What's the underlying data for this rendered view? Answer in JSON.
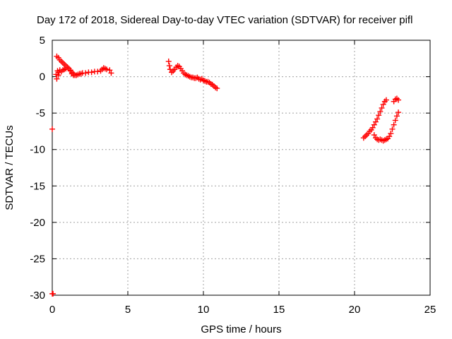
{
  "chart_data": {
    "type": "scatter",
    "title": "Day 172 of 2018, Sidereal Day-to-day VTEC variation (SDTVAR) for receiver pifl",
    "xlabel": "GPS time / hours",
    "ylabel": "SDTVAR / TECUs",
    "xlim": [
      0,
      25
    ],
    "ylim": [
      -30,
      5
    ],
    "xticks": [
      0,
      5,
      10,
      15,
      20,
      25
    ],
    "yticks": [
      5,
      0,
      -5,
      -10,
      -15,
      -20,
      -25,
      -30
    ],
    "grid": true,
    "marker": "+",
    "color": "#ff0000",
    "series": [
      {
        "points": [
          [
            0.0,
            -7.2
          ],
          [
            0.0,
            -29.8
          ],
          [
            0.05,
            -29.8
          ],
          [
            0.25,
            0.3
          ],
          [
            0.3,
            -0.3
          ],
          [
            0.35,
            0.8
          ],
          [
            0.4,
            0.2
          ],
          [
            0.45,
            0.6
          ],
          [
            0.5,
            0.9
          ],
          [
            0.3,
            2.8
          ],
          [
            0.4,
            2.6
          ],
          [
            0.5,
            2.3
          ],
          [
            0.6,
            2.1
          ],
          [
            0.7,
            1.9
          ],
          [
            0.8,
            1.7
          ],
          [
            0.9,
            1.5
          ],
          [
            1.0,
            1.3
          ],
          [
            1.1,
            1.1
          ],
          [
            1.2,
            0.9
          ],
          [
            1.3,
            0.6
          ],
          [
            1.4,
            0.4
          ],
          [
            1.5,
            0.2
          ],
          [
            1.6,
            0.2
          ],
          [
            0.6,
            0.7
          ],
          [
            0.7,
            0.9
          ],
          [
            0.8,
            1.0
          ],
          [
            0.9,
            1.1
          ],
          [
            1.0,
            1.3
          ],
          [
            1.1,
            1.1
          ],
          [
            1.2,
            0.8
          ],
          [
            1.3,
            0.4
          ],
          [
            1.4,
            0.2
          ],
          [
            1.7,
            0.3
          ],
          [
            1.8,
            0.4
          ],
          [
            1.9,
            0.4
          ],
          [
            2.0,
            0.5
          ],
          [
            2.2,
            0.5
          ],
          [
            2.4,
            0.6
          ],
          [
            2.6,
            0.6
          ],
          [
            2.8,
            0.7
          ],
          [
            3.0,
            0.7
          ],
          [
            3.2,
            0.8
          ],
          [
            3.3,
            1.0
          ],
          [
            3.4,
            1.2
          ],
          [
            3.5,
            1.1
          ],
          [
            3.6,
            1.0
          ],
          [
            3.8,
            0.9
          ],
          [
            3.9,
            0.5
          ],
          [
            7.7,
            2.1
          ],
          [
            7.75,
            1.5
          ],
          [
            7.8,
            1.0
          ],
          [
            7.9,
            0.6
          ],
          [
            8.0,
            0.8
          ],
          [
            8.1,
            1.0
          ],
          [
            8.2,
            1.3
          ],
          [
            8.3,
            1.5
          ],
          [
            8.4,
            1.4
          ],
          [
            8.5,
            1.1
          ],
          [
            8.6,
            0.8
          ],
          [
            8.7,
            0.5
          ],
          [
            8.8,
            0.3
          ],
          [
            8.9,
            0.2
          ],
          [
            9.0,
            0.1
          ],
          [
            9.1,
            0.0
          ],
          [
            9.2,
            -0.1
          ],
          [
            9.3,
            -0.1
          ],
          [
            9.4,
            -0.2
          ],
          [
            9.5,
            -0.2
          ],
          [
            9.6,
            -0.1
          ],
          [
            9.7,
            -0.3
          ],
          [
            9.8,
            -0.4
          ],
          [
            9.9,
            -0.3
          ],
          [
            10.0,
            -0.5
          ],
          [
            10.1,
            -0.6
          ],
          [
            10.2,
            -0.7
          ],
          [
            10.3,
            -0.7
          ],
          [
            10.4,
            -0.8
          ],
          [
            10.5,
            -1.0
          ],
          [
            10.6,
            -1.1
          ],
          [
            10.7,
            -1.3
          ],
          [
            10.8,
            -1.5
          ],
          [
            10.9,
            -1.6
          ],
          [
            20.6,
            -8.4
          ],
          [
            20.7,
            -8.2
          ],
          [
            20.8,
            -8.0
          ],
          [
            20.9,
            -7.8
          ],
          [
            21.0,
            -7.5
          ],
          [
            21.1,
            -7.3
          ],
          [
            21.2,
            -7.0
          ],
          [
            21.3,
            -6.6
          ],
          [
            21.4,
            -6.2
          ],
          [
            21.5,
            -5.8
          ],
          [
            21.6,
            -5.3
          ],
          [
            21.7,
            -4.8
          ],
          [
            21.8,
            -4.3
          ],
          [
            21.9,
            -3.8
          ],
          [
            22.0,
            -3.4
          ],
          [
            22.1,
            -3.2
          ],
          [
            21.3,
            -8.0
          ],
          [
            21.4,
            -8.4
          ],
          [
            21.5,
            -8.6
          ],
          [
            21.6,
            -8.7
          ],
          [
            21.7,
            -8.6
          ],
          [
            21.8,
            -8.7
          ],
          [
            21.9,
            -8.8
          ],
          [
            22.0,
            -8.7
          ],
          [
            22.1,
            -8.6
          ],
          [
            22.2,
            -8.5
          ],
          [
            22.3,
            -8.2
          ],
          [
            22.4,
            -7.8
          ],
          [
            22.5,
            -7.2
          ],
          [
            22.6,
            -6.6
          ],
          [
            22.7,
            -6.0
          ],
          [
            22.8,
            -5.4
          ],
          [
            22.9,
            -4.9
          ],
          [
            22.6,
            -3.4
          ],
          [
            22.7,
            -3.1
          ],
          [
            22.8,
            -3.0
          ],
          [
            22.9,
            -3.2
          ]
        ]
      }
    ]
  }
}
